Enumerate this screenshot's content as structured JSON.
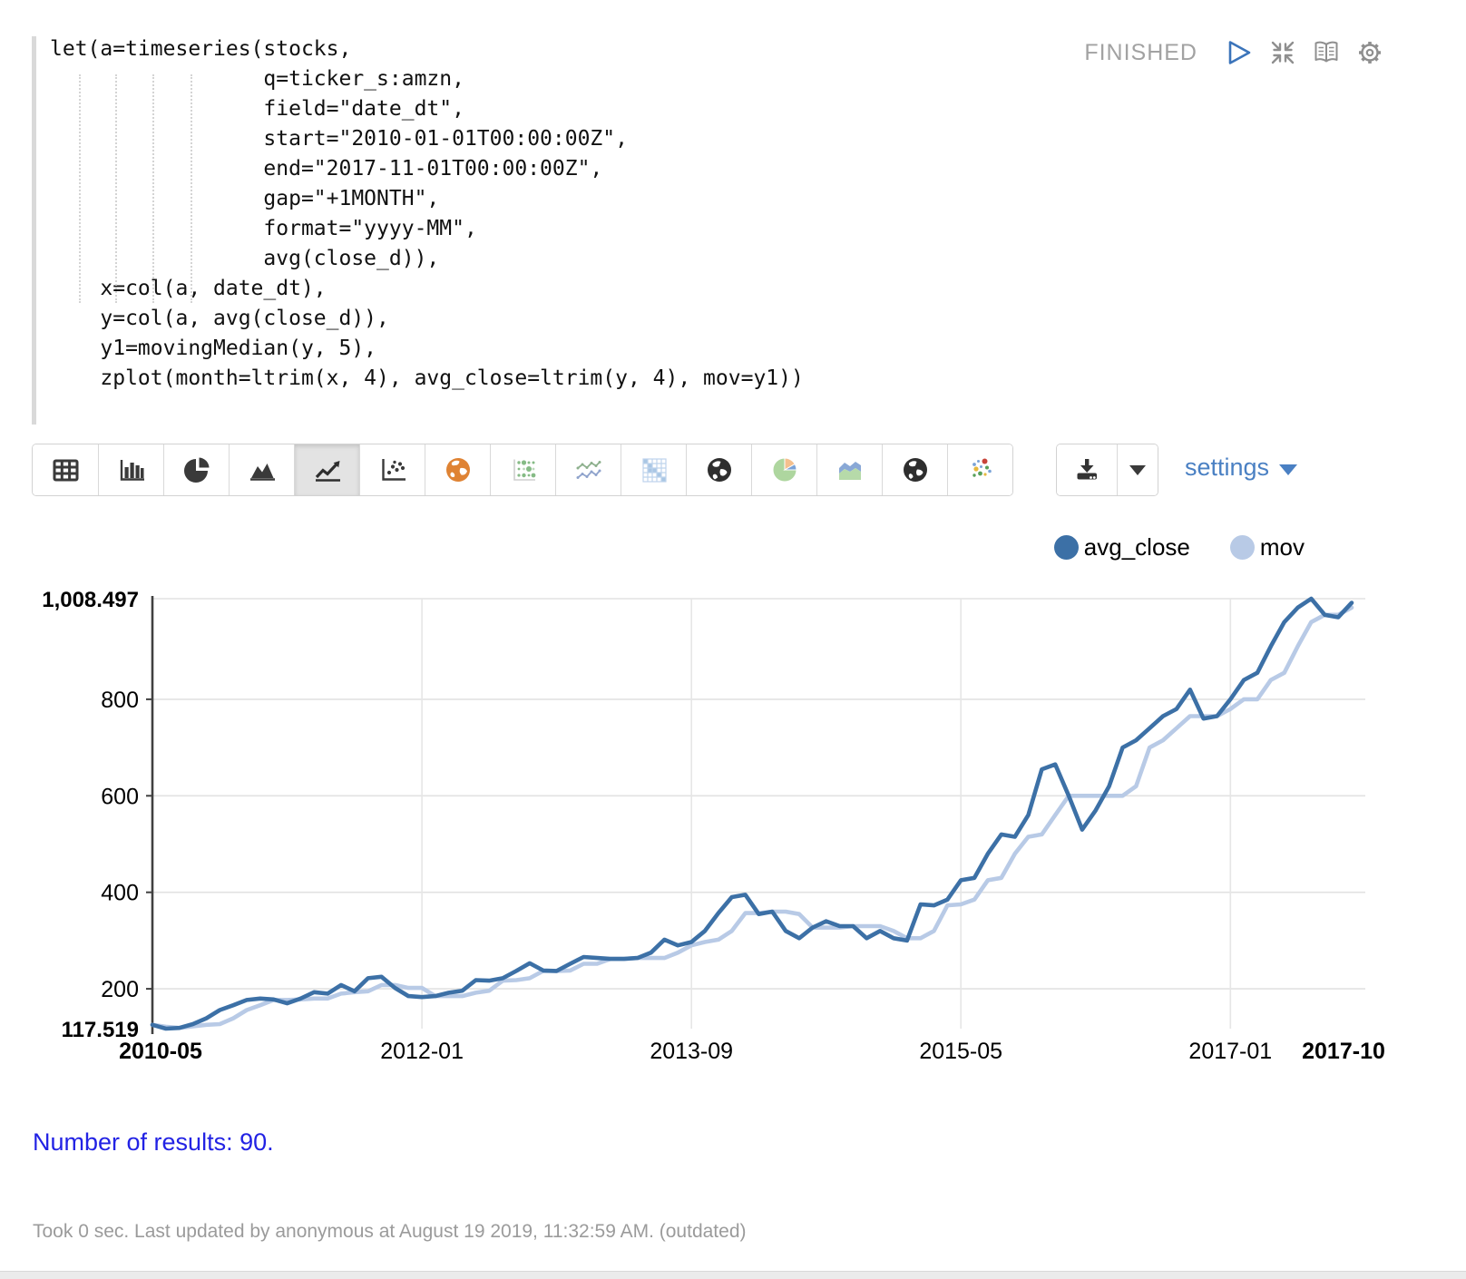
{
  "editor": {
    "code_lines": [
      "let(a=timeseries(stocks,",
      "                 q=ticker_s:amzn,",
      "                 field=\"date_dt\",",
      "                 start=\"2010-01-01T00:00:00Z\",",
      "                 end=\"2017-11-01T00:00:00Z\",",
      "                 gap=\"+1MONTH\",",
      "                 format=\"yyyy-MM\",",
      "                 avg(close_d)),",
      "    x=col(a, date_dt),",
      "    y=col(a, avg(close_d)),",
      "    y1=movingMedian(y, 5),",
      "    zplot(month=ltrim(x, 4), avg_close=ltrim(y, 4), mov=y1))"
    ]
  },
  "status": {
    "label": "FINISHED",
    "icons": [
      "run-icon",
      "shrink-icon",
      "report-view-icon",
      "gear-icon"
    ]
  },
  "toolbar": {
    "chart_types": [
      "table",
      "bar-chart",
      "pie-chart",
      "area-chart",
      "line-chart",
      "scatter",
      "globe-orange",
      "bubble-grid",
      "multi-line",
      "heatmap",
      "globe-dark",
      "pie-pastel",
      "area-pastel",
      "globe-dark-2",
      "scatter-color"
    ],
    "selected": "line-chart",
    "settings_label": "settings"
  },
  "legend": [
    {
      "label": "avg_close",
      "color": "#3C70A6"
    },
    {
      "label": "mov",
      "color": "#B8CAE6"
    }
  ],
  "chart_data": {
    "type": "line",
    "title": "",
    "xlabel": "",
    "ylabel": "",
    "grid": true,
    "legend_position": "top-right",
    "ylim": [
      117.519,
      1008.497
    ],
    "ymin_label": "117.519",
    "ymax_label": "1,008.497",
    "yticks": [
      200,
      400,
      600,
      800
    ],
    "xticks": [
      {
        "index": 0,
        "label": "2010-05",
        "bold": true
      },
      {
        "index": 20,
        "label": "2012-01",
        "bold": false
      },
      {
        "index": 40,
        "label": "2013-09",
        "bold": false
      },
      {
        "index": 60,
        "label": "2015-05",
        "bold": false
      },
      {
        "index": 80,
        "label": "2017-01",
        "bold": false
      },
      {
        "index": 89,
        "label": "2017-10",
        "bold": true
      }
    ],
    "x": [
      "2010-05",
      "2010-06",
      "2010-07",
      "2010-08",
      "2010-09",
      "2010-10",
      "2010-11",
      "2010-12",
      "2011-01",
      "2011-02",
      "2011-03",
      "2011-04",
      "2011-05",
      "2011-06",
      "2011-07",
      "2011-08",
      "2011-09",
      "2011-10",
      "2011-11",
      "2011-12",
      "2012-01",
      "2012-02",
      "2012-03",
      "2012-04",
      "2012-05",
      "2012-06",
      "2012-07",
      "2012-08",
      "2012-09",
      "2012-10",
      "2012-11",
      "2012-12",
      "2013-01",
      "2013-02",
      "2013-03",
      "2013-04",
      "2013-05",
      "2013-06",
      "2013-07",
      "2013-08",
      "2013-09",
      "2013-10",
      "2013-11",
      "2013-12",
      "2014-01",
      "2014-02",
      "2014-03",
      "2014-04",
      "2014-05",
      "2014-06",
      "2014-07",
      "2014-08",
      "2014-09",
      "2014-10",
      "2014-11",
      "2014-12",
      "2015-01",
      "2015-02",
      "2015-03",
      "2015-04",
      "2015-05",
      "2015-06",
      "2015-07",
      "2015-08",
      "2015-09",
      "2015-10",
      "2015-11",
      "2015-12",
      "2016-01",
      "2016-02",
      "2016-03",
      "2016-04",
      "2016-05",
      "2016-06",
      "2016-07",
      "2016-08",
      "2016-09",
      "2016-10",
      "2016-11",
      "2016-12",
      "2017-01",
      "2017-02",
      "2017-03",
      "2017-04",
      "2017-05",
      "2017-06",
      "2017-07",
      "2017-08",
      "2017-09",
      "2017-10"
    ],
    "series": [
      {
        "name": "avg_close",
        "color": "#3C70A6",
        "values": [
          125.5,
          117.519,
          119,
          127,
          139,
          156,
          166,
          177,
          180,
          178,
          170,
          180,
          193,
          190,
          208,
          195,
          222,
          225,
          202,
          185,
          183,
          185,
          192,
          196,
          218,
          217,
          222,
          237,
          253,
          238,
          237,
          252,
          266,
          264,
          262,
          262,
          264,
          275,
          302,
          290,
          297,
          320,
          357,
          390,
          395,
          355,
          360,
          320,
          305,
          327,
          340,
          330,
          330,
          305,
          320,
          305,
          300,
          375,
          373,
          385,
          425,
          430,
          480,
          520,
          515,
          560,
          655,
          665,
          600,
          530,
          570,
          620,
          700,
          715,
          740,
          765,
          780,
          820,
          760,
          765,
          800,
          840,
          855,
          910,
          960,
          990,
          1008.497,
          975,
          970,
          1000
        ]
      },
      {
        "name": "mov",
        "color": "#B8CAE6",
        "values": [
          125.5,
          121.5,
          119,
          122.25,
          125.5,
          127,
          139,
          156,
          166,
          177,
          177,
          178,
          180,
          180,
          190,
          193,
          195,
          208,
          208,
          202,
          202,
          185,
          185,
          185,
          192,
          196,
          217,
          218,
          222,
          237,
          237,
          238,
          252,
          252,
          262,
          262,
          264,
          264,
          264,
          275,
          290,
          297,
          302,
          320,
          357,
          357,
          360,
          360,
          355,
          327,
          327,
          327,
          330,
          330,
          330,
          320,
          305,
          305,
          320,
          373,
          375,
          385,
          425,
          430,
          480,
          515,
          520,
          560,
          600,
          600,
          600,
          600,
          600,
          620,
          700,
          715,
          740,
          765,
          765,
          765,
          780,
          800,
          800,
          840,
          855,
          910,
          960,
          975,
          975,
          990
        ]
      }
    ]
  },
  "results_text": "Number of results: 90.",
  "footer_text": "Took 0 sec. Last updated by anonymous at August 19 2019, 11:32:59 AM. (outdated)"
}
